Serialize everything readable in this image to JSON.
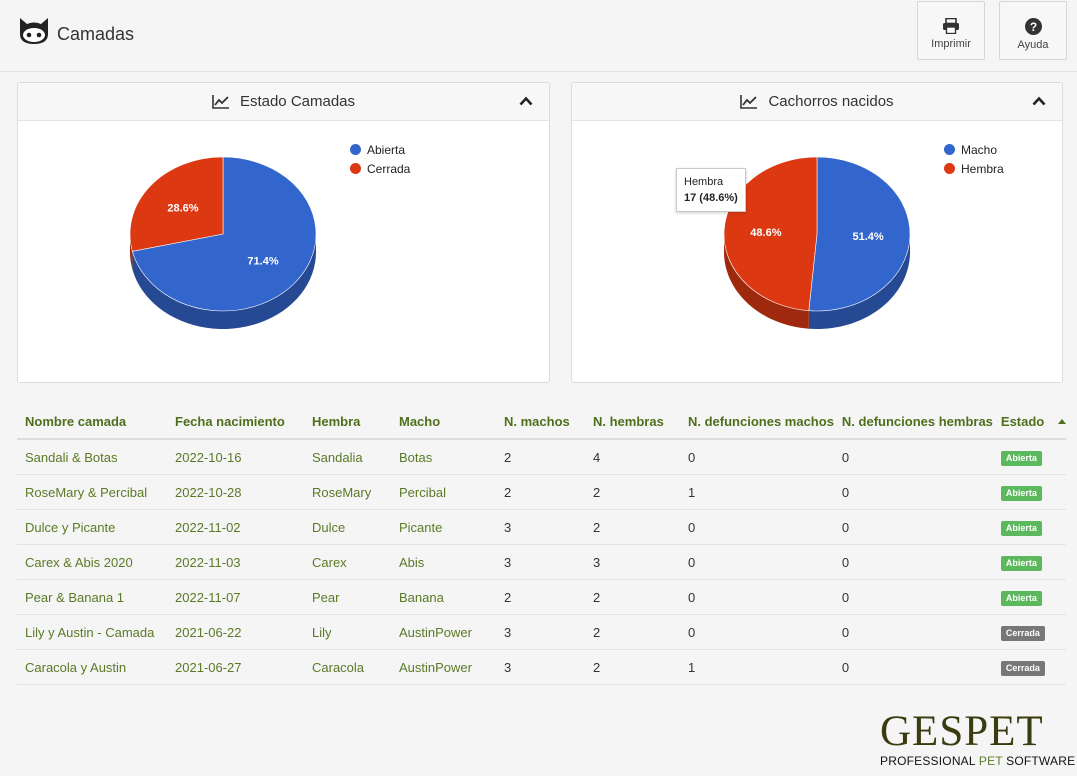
{
  "header": {
    "title": "Camadas",
    "logo_icon": "cat-icon",
    "print_label": "Imprimir",
    "help_label": "Ayuda"
  },
  "colors": {
    "blue": "#3366cc",
    "red": "#dc3912",
    "green_link": "#5a7a26",
    "badge_open": "#5cb85c",
    "badge_closed": "#777777"
  },
  "panels": [
    {
      "title": "Estado Camadas",
      "icon": "line-chart-icon"
    },
    {
      "title": "Cachorros nacidos",
      "icon": "line-chart-icon"
    }
  ],
  "chart_data": [
    {
      "type": "pie",
      "title": "Estado Camadas",
      "labels": [
        "Abierta",
        "Cerrada"
      ],
      "values": [
        71.4,
        28.6
      ],
      "colors": [
        "#3366cc",
        "#dc3912"
      ],
      "slice_labels": [
        "71.4%",
        "28.6%"
      ],
      "legend": "top-right"
    },
    {
      "type": "pie",
      "title": "Cachorros nacidos",
      "labels": [
        "Macho",
        "Hembra"
      ],
      "values": [
        51.4,
        48.6
      ],
      "colors": [
        "#3366cc",
        "#dc3912"
      ],
      "slice_labels": [
        "51.4%",
        "48.6%"
      ],
      "legend": "top-right",
      "tooltip": {
        "label": "Hembra",
        "value": "17 (48.6%)"
      }
    }
  ],
  "table": {
    "columns": [
      "Nombre camada",
      "Fecha nacimiento",
      "Hembra",
      "Macho",
      "N. machos",
      "N. hembras",
      "N. defunciones machos",
      "N. defunciones hembras",
      "Estado"
    ],
    "rows": [
      [
        "Sandali & Botas",
        "2022-10-16",
        "Sandalia",
        "Botas",
        "2",
        "4",
        "0",
        "0",
        "Abierta"
      ],
      [
        "RoseMary & Percibal",
        "2022-10-28",
        "RoseMary",
        "Percibal",
        "2",
        "2",
        "1",
        "0",
        "Abierta"
      ],
      [
        "Dulce y Picante",
        "2022-11-02",
        "Dulce",
        "Picante",
        "3",
        "2",
        "0",
        "0",
        "Abierta"
      ],
      [
        "Carex & Abis 2020",
        "2022-11-03",
        "Carex",
        "Abis",
        "3",
        "3",
        "0",
        "0",
        "Abierta"
      ],
      [
        "Pear & Banana 1",
        "2022-11-07",
        "Pear",
        "Banana",
        "2",
        "2",
        "0",
        "0",
        "Abierta"
      ],
      [
        "Lily y Austin - Camada",
        "2021-06-22",
        "Lily",
        "AustinPower",
        "3",
        "2",
        "0",
        "0",
        "Cerrada"
      ],
      [
        "Caracola y Austin",
        "2021-06-27",
        "Caracola",
        "AustinPower",
        "3",
        "2",
        "1",
        "0",
        "Cerrada"
      ]
    ]
  },
  "brand": {
    "name": "GESPET",
    "tagline_a": "PROFESSIONAL ",
    "tagline_b": "PET",
    "tagline_c": " SOFTWARE"
  }
}
